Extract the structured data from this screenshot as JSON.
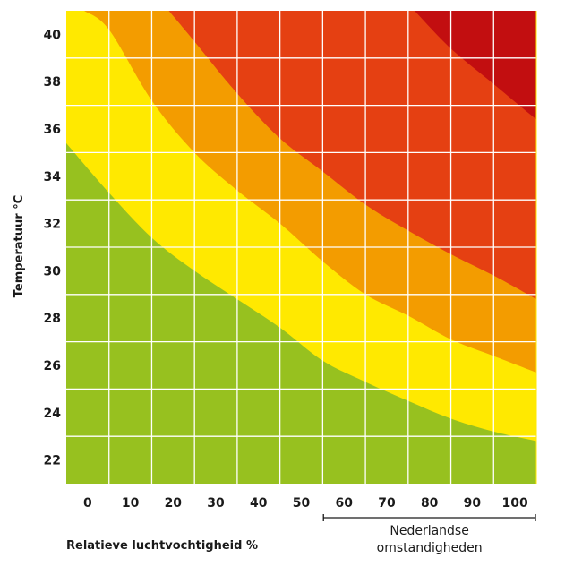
{
  "chart_data": {
    "type": "area",
    "title": "",
    "xlabel": "Relatieve luchtvochtigheid %",
    "ylabel": "Temperatuur °C",
    "xlim": [
      -5,
      105
    ],
    "ylim": [
      21,
      41
    ],
    "grid": true,
    "x_ticks": [
      "0",
      "10",
      "20",
      "30",
      "40",
      "50",
      "60",
      "70",
      "80",
      "90",
      "100"
    ],
    "y_ticks": [
      "40",
      "38",
      "36",
      "34",
      "32",
      "30",
      "28",
      "26",
      "24",
      "22"
    ],
    "zone_colors": [
      "#97c11f",
      "#ffe900",
      "#f39c00",
      "#e54012",
      "#c20e10"
    ],
    "boundaries": [
      {
        "name": "green-yellow",
        "points": [
          [
            -5,
            35.4
          ],
          [
            5,
            33.3
          ],
          [
            15,
            31.4
          ],
          [
            25,
            30.0
          ],
          [
            35,
            28.8
          ],
          [
            45,
            27.6
          ],
          [
            55,
            26.2
          ],
          [
            65,
            25.3
          ],
          [
            75,
            24.5
          ],
          [
            85,
            23.75
          ],
          [
            95,
            23.2
          ],
          [
            105,
            22.8
          ]
        ]
      },
      {
        "name": "yellow-orange",
        "points": [
          [
            -0.8,
            41
          ],
          [
            5,
            40.2
          ],
          [
            15,
            37.2
          ],
          [
            25,
            35.0
          ],
          [
            35,
            33.4
          ],
          [
            45,
            32.0
          ],
          [
            55,
            30.4
          ],
          [
            65,
            29.0
          ],
          [
            75,
            28.1
          ],
          [
            85,
            27.1
          ],
          [
            95,
            26.4
          ],
          [
            105,
            25.7
          ]
        ]
      },
      {
        "name": "orange-red",
        "points": [
          [
            19,
            41
          ],
          [
            25,
            39.7
          ],
          [
            35,
            37.5
          ],
          [
            45,
            35.6
          ],
          [
            55,
            34.2
          ],
          [
            65,
            32.8
          ],
          [
            75,
            31.7
          ],
          [
            85,
            30.7
          ],
          [
            95,
            29.8
          ],
          [
            105,
            28.8
          ]
        ]
      },
      {
        "name": "red-darkred",
        "points": [
          [
            76.5,
            41
          ],
          [
            85,
            39.4
          ],
          [
            95,
            37.9
          ],
          [
            105,
            36.4
          ]
        ]
      }
    ],
    "annotation": {
      "range": [
        60,
        100
      ],
      "line1": "Nederlandse",
      "line2": "omstandigheden"
    }
  }
}
